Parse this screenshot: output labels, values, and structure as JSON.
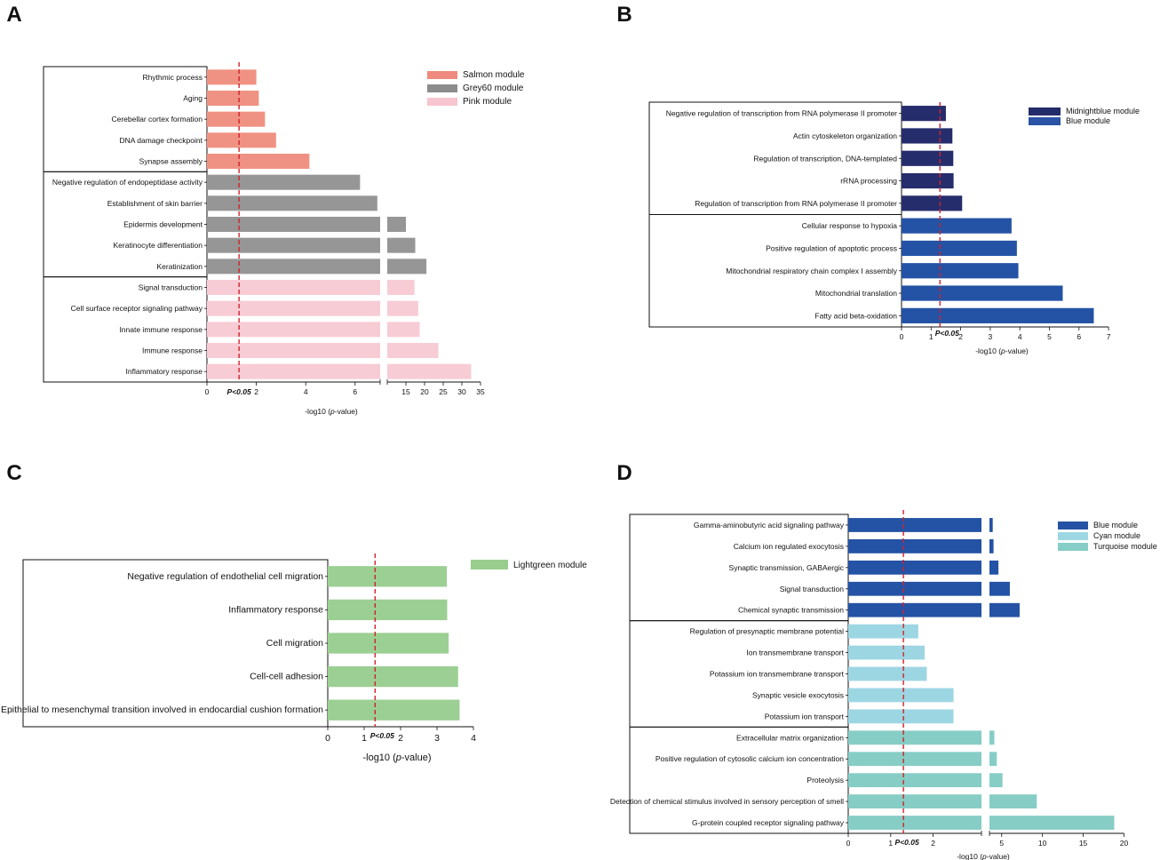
{
  "panels": [
    "A",
    "B",
    "C",
    "D"
  ],
  "pvalue_label": "P<0.05",
  "chart_data": [
    {
      "panel": "A",
      "type": "bar",
      "orientation": "horizontal",
      "xlabel": "-log10 (p-value)",
      "axis_break": {
        "lower": [
          0,
          7
        ],
        "upper": [
          10,
          35
        ]
      },
      "lower_ticks": [
        0,
        2,
        4,
        6
      ],
      "upper_ticks": [
        15,
        20,
        25,
        30,
        35
      ],
      "threshold": 1.3,
      "legend": [
        {
          "name": "Salmon module",
          "color": "#ef8a7e"
        },
        {
          "name": "Grey60 module",
          "color": "#8c8c8c"
        },
        {
          "name": "Pink module",
          "color": "#f7c5cf"
        }
      ],
      "groups": [
        {
          "module": "Salmon module",
          "color": "#f09283",
          "categories": [
            "Rhythmic process",
            "Aging",
            "Cerebellar cortex formation",
            "DNA damage checkpoint",
            "Synapse assembly"
          ],
          "values": [
            2.0,
            2.1,
            2.35,
            2.8,
            4.15
          ]
        },
        {
          "module": "Grey60 module",
          "color": "#969696",
          "categories": [
            "Negative regulation of endopeptidase activity",
            "Establishment of skin barrier",
            "Epidermis development",
            "Keratinocyte differentiation",
            "Keratinization"
          ],
          "values": [
            6.2,
            6.9,
            15,
            17.5,
            20.5
          ]
        },
        {
          "module": "Pink module",
          "color": "#f8ccd5",
          "categories": [
            "Signal transduction",
            "Cell surface receptor signaling pathway",
            "Innate immune response",
            "Immune response",
            "Inflammatory response"
          ],
          "values": [
            17.3,
            18.3,
            18.7,
            23.7,
            32.5
          ]
        }
      ]
    },
    {
      "panel": "B",
      "type": "bar",
      "orientation": "horizontal",
      "xlabel": "-log10 (p-value)",
      "xlim": [
        0,
        7
      ],
      "ticks": [
        0,
        1,
        2,
        3,
        4,
        5,
        6,
        7
      ],
      "threshold": 1.3,
      "legend": [
        {
          "name": "Midnightblue module",
          "color": "#232c6a"
        },
        {
          "name": "Blue module",
          "color": "#2a52a5"
        }
      ],
      "groups": [
        {
          "module": "Midnightblue module",
          "color": "#262d6c",
          "categories": [
            "Negative regulation of transcription from RNA polymerase II promoter",
            "Actin cytoskeleton organization",
            "Regulation of transcription, DNA-templated",
            "rRNA processing",
            "Regulation of transcription from RNA polymerase II promoter"
          ],
          "values": [
            1.5,
            1.72,
            1.75,
            1.76,
            2.05
          ]
        },
        {
          "module": "Blue module",
          "color": "#2452a5",
          "categories": [
            "Cellular response to hypoxia",
            "Positive regulation of apoptotic process",
            "Mitochondrial respiratory chain complex I assembly",
            "Mitochondrial translation",
            "Fatty acid beta-oxidation"
          ],
          "values": [
            3.72,
            3.9,
            3.95,
            5.45,
            6.5
          ]
        }
      ]
    },
    {
      "panel": "C",
      "type": "bar",
      "orientation": "horizontal",
      "xlabel": "-log10 (p-value)",
      "xlim": [
        0,
        4
      ],
      "ticks": [
        0,
        1,
        2,
        3,
        4
      ],
      "threshold": 1.3,
      "legend": [
        {
          "name": "Lightgreen module",
          "color": "#98cd8e"
        }
      ],
      "groups": [
        {
          "module": "Lightgreen module",
          "color": "#9ccf93",
          "categories": [
            "Negative regulation of endothelial cell migration",
            "Inflammatory response",
            "Cell migration",
            "Cell-cell adhesion",
            "Epithelial to mesenchymal transition involved in endocardial cushion formation"
          ],
          "values": [
            3.27,
            3.28,
            3.32,
            3.58,
            3.62
          ]
        }
      ]
    },
    {
      "panel": "D",
      "type": "bar",
      "orientation": "horizontal",
      "xlabel": "-log10 (p-value)",
      "axis_break": {
        "lower": [
          0,
          3.1
        ],
        "upper": [
          3.5,
          20
        ]
      },
      "lower_ticks": [
        0,
        1,
        2
      ],
      "upper_ticks": [
        5,
        10,
        15,
        20
      ],
      "threshold": 1.3,
      "legend": [
        {
          "name": "Blue module",
          "color": "#2452a5"
        },
        {
          "name": "Cyan module",
          "color": "#9dd7e3"
        },
        {
          "name": "Turquoise module",
          "color": "#86cec7"
        }
      ],
      "groups": [
        {
          "module": "Blue module",
          "color": "#2452a5",
          "categories": [
            "Gamma-aminobutyric acid signaling pathway",
            "Calcium ion regulated exocytosis",
            "Synaptic transmission, GABAergic",
            "Signal transduction",
            "Chemical synaptic transmission"
          ],
          "values": [
            3.9,
            4.0,
            4.6,
            6.0,
            7.2
          ]
        },
        {
          "module": "Cyan module",
          "color": "#9dd6e3",
          "categories": [
            "Regulation of presynaptic membrane potential",
            "Ion transmembrane transport",
            "Potassium ion transmembrane transport",
            "Synaptic vesicle exocytosis",
            "Potassium ion transport"
          ],
          "values": [
            1.65,
            1.8,
            1.85,
            2.48,
            2.48
          ]
        },
        {
          "module": "Turquoise module",
          "color": "#86cdc6",
          "categories": [
            "Extracellular matrix organization",
            "Positive regulation of cytosolic calcium ion concentration",
            "Proteolysis",
            "Detection of chemical stimulus involved in sensory perception of smell",
            "G-protein coupled receptor signaling pathway"
          ],
          "values": [
            4.1,
            4.4,
            5.1,
            9.3,
            18.8
          ]
        }
      ]
    }
  ]
}
